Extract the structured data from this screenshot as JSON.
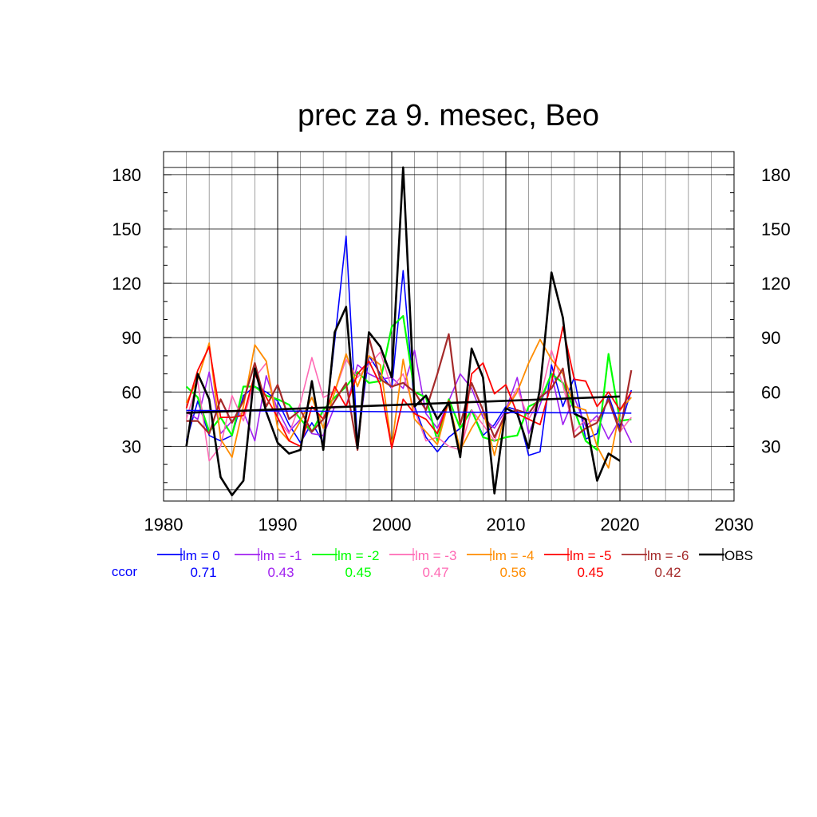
{
  "chart_data": {
    "type": "line",
    "title": "prec za 9. mesec, Beo",
    "xlabel": "",
    "ylabel": "",
    "xlim": [
      1980,
      2030
    ],
    "ylim": [
      0,
      190
    ],
    "x_ticks": [
      1980,
      1990,
      2000,
      2010,
      2020,
      2030
    ],
    "x_tick_labels": [
      "1980",
      "1990",
      "2000",
      "2010",
      "2020",
      "2030"
    ],
    "y_ticks": [
      30,
      60,
      90,
      120,
      150,
      180
    ],
    "y_tick_labels": [
      "30",
      "60",
      "90",
      "120",
      "150",
      "180"
    ],
    "grid": true,
    "legend_position": "bottom",
    "ccor_label": "ccor",
    "ccor_color": "#0000ff",
    "x": [
      1982,
      1983,
      1984,
      1985,
      1986,
      1987,
      1988,
      1989,
      1990,
      1991,
      1992,
      1993,
      1994,
      1995,
      1996,
      1997,
      1998,
      1999,
      2000,
      2001,
      2002,
      2003,
      2004,
      2005,
      2006,
      2007,
      2008,
      2009,
      2010,
      2011,
      2012,
      2013,
      2014,
      2015,
      2016,
      2017,
      2018,
      2019,
      2020,
      2021
    ],
    "series": [
      {
        "name": "lm = 0",
        "color": "#0000ff",
        "width": 1.6,
        "ccor": "0.71",
        "values": [
          33,
          55,
          36,
          33,
          36,
          58,
          63,
          60,
          55,
          42,
          32,
          43,
          32,
          88,
          146,
          32,
          80,
          70,
          62,
          127,
          52,
          35,
          27,
          35,
          40,
          50,
          36,
          42,
          52,
          50,
          25,
          27,
          75,
          52,
          68,
          34,
          37,
          58,
          40,
          61
        ],
        "trend": [
          49.8,
          48.3
        ]
      },
      {
        "name": "lm = -1",
        "color": "#a020f0",
        "width": 1.6,
        "ccor": "0.43",
        "values": [
          49,
          45,
          71,
          37,
          44,
          49,
          33,
          69,
          50,
          38,
          45,
          37,
          36,
          52,
          52,
          75,
          70,
          67,
          68,
          62,
          83,
          48,
          40,
          55,
          70,
          62,
          46,
          40,
          50,
          68,
          37,
          53,
          70,
          42,
          57,
          41,
          47,
          34,
          45,
          32
        ]
      },
      {
        "name": "lm = -2",
        "color": "#00ff00",
        "width": 2.2,
        "ccor": "0.45",
        "values": [
          63,
          57,
          38,
          46,
          36,
          63,
          63,
          58,
          56,
          53,
          45,
          38,
          50,
          57,
          63,
          71,
          65,
          66,
          96,
          102,
          60,
          57,
          33,
          56,
          40,
          50,
          35,
          33,
          35,
          36,
          52,
          55,
          70,
          65,
          50,
          33,
          28,
          81,
          44,
          45
        ]
      },
      {
        "name": "lm = -3",
        "color": "#ff69b4",
        "width": 1.6,
        "ccor": "0.47",
        "values": [
          45,
          66,
          22,
          30,
          58,
          44,
          68,
          76,
          45,
          37,
          54,
          79,
          57,
          60,
          78,
          68,
          75,
          82,
          62,
          70,
          50,
          33,
          35,
          30,
          28,
          50,
          42,
          33,
          50,
          62,
          45,
          56,
          83,
          64,
          38,
          45,
          44,
          55,
          38,
          46
        ]
      },
      {
        "name": "lm = -4",
        "color": "#ff8c00",
        "width": 1.8,
        "ccor": "0.56",
        "values": [
          54,
          67,
          87,
          34,
          24,
          52,
          86,
          77,
          40,
          33,
          44,
          57,
          40,
          60,
          81,
          63,
          80,
          75,
          30,
          78,
          45,
          38,
          31,
          55,
          28,
          40,
          50,
          25,
          50,
          60,
          76,
          89,
          78,
          70,
          52,
          50,
          30,
          18,
          50,
          57
        ]
      },
      {
        "name": "lm = -5",
        "color": "#ff0000",
        "width": 1.8,
        "ccor": "0.45",
        "values": [
          51,
          72,
          85,
          46,
          46,
          47,
          70,
          57,
          46,
          33,
          30,
          52,
          45,
          63,
          52,
          70,
          77,
          64,
          29,
          56,
          48,
          45,
          37,
          55,
          24,
          70,
          76,
          59,
          64,
          48,
          45,
          42,
          65,
          96,
          67,
          66,
          52,
          60,
          50,
          60
        ]
      },
      {
        "name": "lm = -6",
        "color": "#a52a2a",
        "width": 2.2,
        "ccor": "0.42",
        "values": [
          44,
          44,
          37,
          56,
          43,
          55,
          76,
          52,
          64,
          45,
          50,
          38,
          45,
          55,
          65,
          28,
          90,
          67,
          63,
          65,
          60,
          50,
          70,
          92,
          42,
          65,
          50,
          35,
          48,
          50,
          48,
          57,
          62,
          73,
          35,
          40,
          43,
          56,
          38,
          72
        ]
      },
      {
        "name": "OBS",
        "color": "#000000",
        "width": 2.6,
        "values": [
          30,
          70,
          56,
          13,
          3,
          11,
          73,
          49,
          32,
          26,
          28,
          66,
          28,
          93,
          107,
          29,
          93,
          85,
          68,
          184,
          52,
          58,
          45,
          54,
          24,
          84,
          68,
          4,
          51,
          48,
          29,
          62,
          126,
          101,
          48,
          45,
          11,
          26,
          22,
          null
        ],
        "trend": [
          48.5,
          57.5
        ]
      }
    ]
  }
}
